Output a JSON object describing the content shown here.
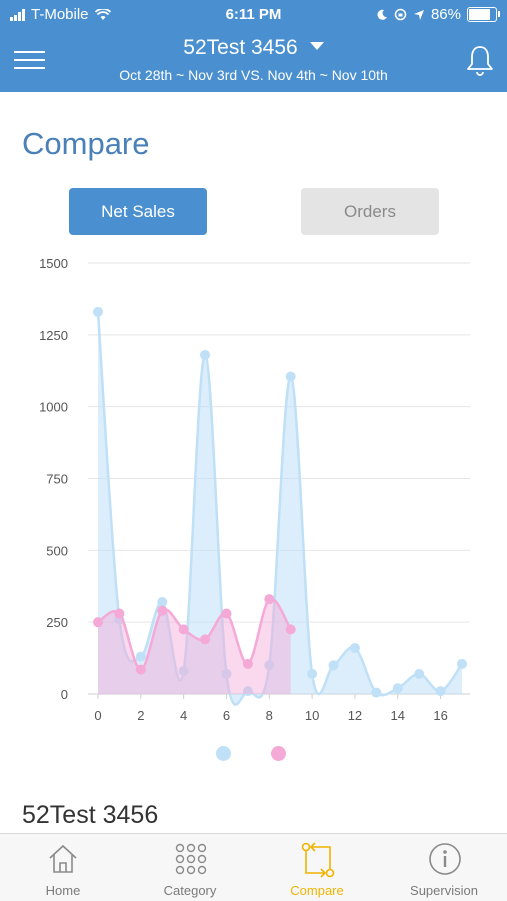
{
  "status_bar": {
    "carrier": "T-Mobile",
    "time": "6:11 PM",
    "battery": "86%",
    "battery_level": 0.86
  },
  "header": {
    "title": "52Test 3456",
    "date_range": "Oct 28th ~ Nov 3rd VS. Nov 4th ~ Nov 10th"
  },
  "page": {
    "title": "Compare",
    "toggle": {
      "net_sales": "Net Sales",
      "orders": "Orders",
      "selected": "net_sales"
    },
    "section_title": "52Test 3456"
  },
  "colors": {
    "accent": "#4a90d0",
    "series_a": "#bfe0f7",
    "series_b": "#f4a9d6",
    "active_tab": "#f0b400"
  },
  "tabbar": {
    "items": [
      {
        "label": "Home",
        "icon": "home-icon"
      },
      {
        "label": "Category",
        "icon": "grid-icon"
      },
      {
        "label": "Compare",
        "icon": "compare-icon"
      },
      {
        "label": "Supervision",
        "icon": "info-icon"
      }
    ],
    "active": 2
  },
  "chart_data": {
    "type": "area",
    "ylim": [
      0,
      1500
    ],
    "yticks": [
      0,
      250,
      500,
      750,
      1000,
      1250,
      1500
    ],
    "xlim": [
      0,
      17
    ],
    "xticks": [
      0,
      2,
      4,
      6,
      8,
      10,
      12,
      14,
      16
    ],
    "grid": true,
    "legend": "bottom-center",
    "series": [
      {
        "color": "#bfe0f7",
        "x": [
          0,
          1,
          2,
          3,
          4,
          5,
          6,
          7,
          8,
          9,
          10,
          11,
          12,
          13,
          14,
          15,
          16,
          17
        ],
        "values": [
          1330,
          260,
          130,
          320,
          80,
          1180,
          70,
          10,
          100,
          1105,
          70,
          100,
          160,
          5,
          20,
          70,
          10,
          105
        ]
      },
      {
        "color": "#f4a9d6",
        "x": [
          0,
          1,
          2,
          3,
          4,
          5,
          6,
          7,
          8,
          9
        ],
        "values": [
          250,
          280,
          85,
          290,
          225,
          190,
          280,
          105,
          330,
          225
        ]
      }
    ]
  }
}
